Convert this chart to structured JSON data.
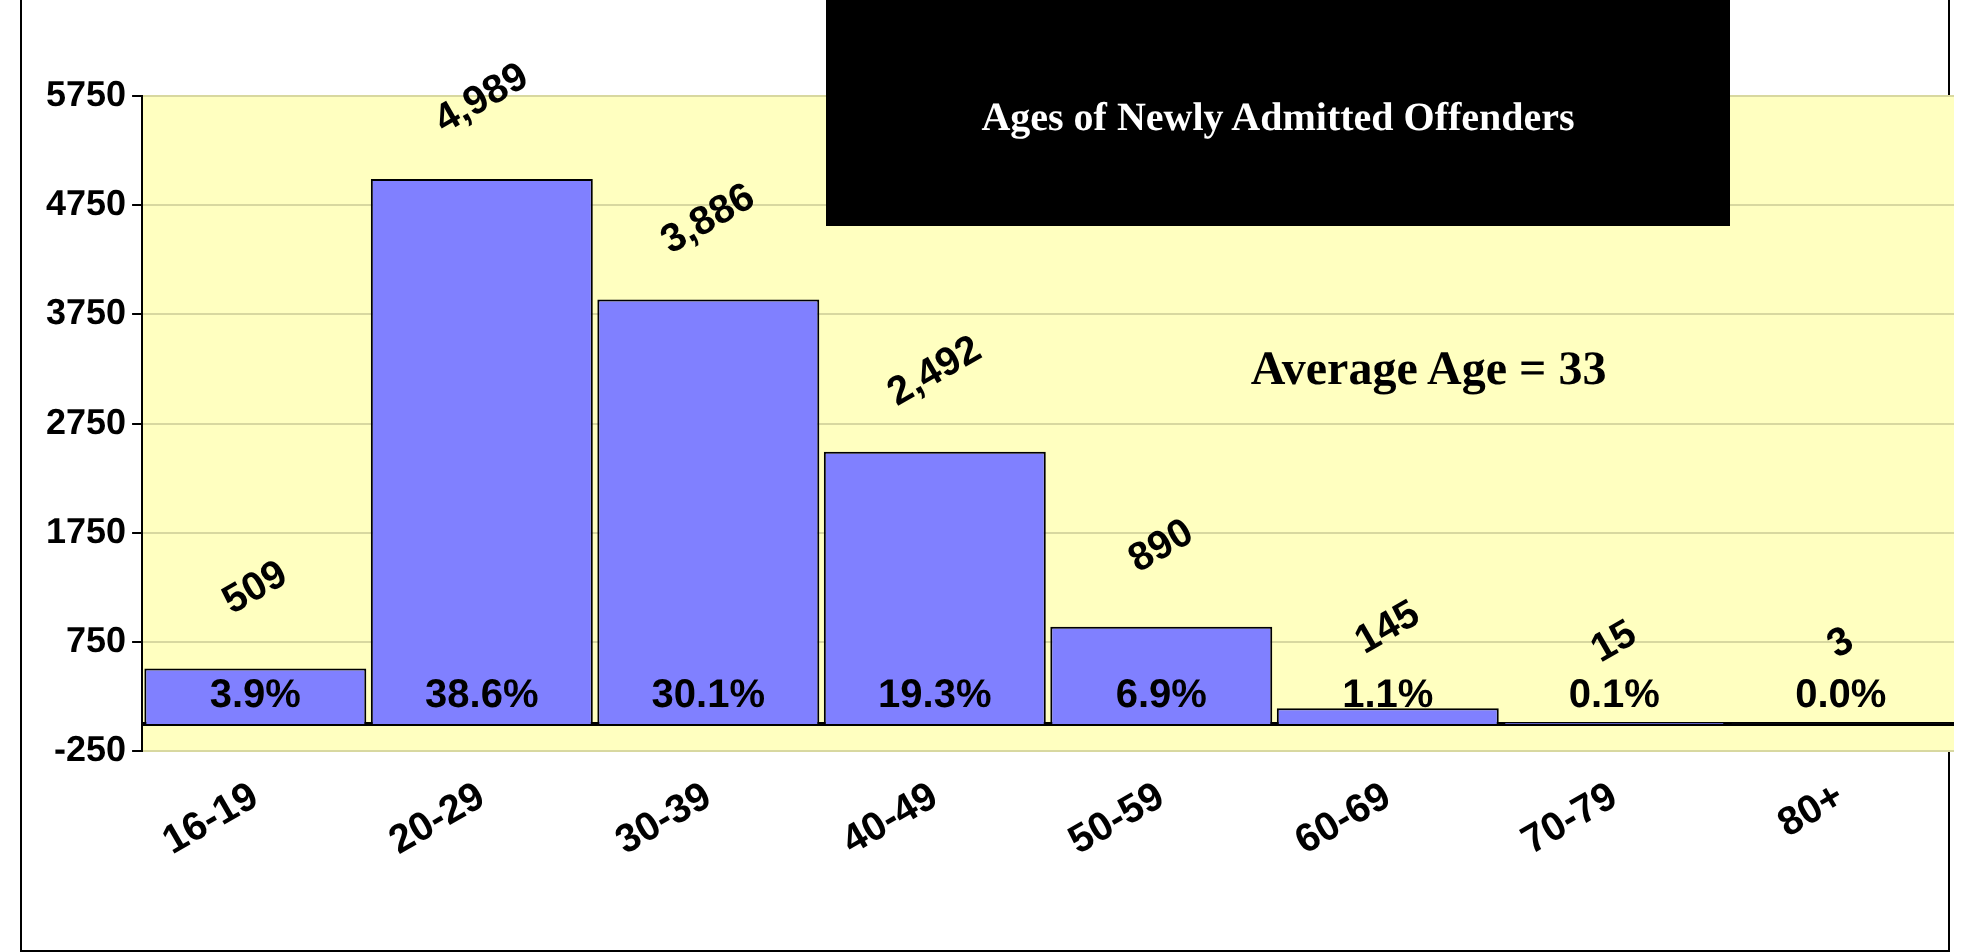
{
  "chart_data": {
    "type": "bar",
    "title": "Ages of Newly Admitted Offenders",
    "categories": [
      "16-19",
      "20-29",
      "30-39",
      "40-49",
      "50-59",
      "60-69",
      "70-79",
      "80+"
    ],
    "values": [
      509,
      4989,
      3886,
      2492,
      890,
      145,
      15,
      3
    ],
    "value_labels": [
      "509",
      "4,989",
      "3,886",
      "2,492",
      "890",
      "145",
      "15",
      "3"
    ],
    "color": "#8080ff",
    "ylim": [
      -250,
      5750
    ],
    "yticks": [
      -250,
      750,
      1750,
      2750,
      3750,
      4750,
      5750
    ],
    "grid": "y",
    "legend": false,
    "ref_lines": [
      {
        "axis": "y",
        "value": 0,
        "color": "#000000"
      }
    ],
    "annotations": [
      "3.9%",
      "38.6%",
      "30.1%",
      "19.3%",
      "6.9%",
      "1.1%",
      "0.1%",
      "0.0%",
      "Average Age = 33"
    ]
  }
}
